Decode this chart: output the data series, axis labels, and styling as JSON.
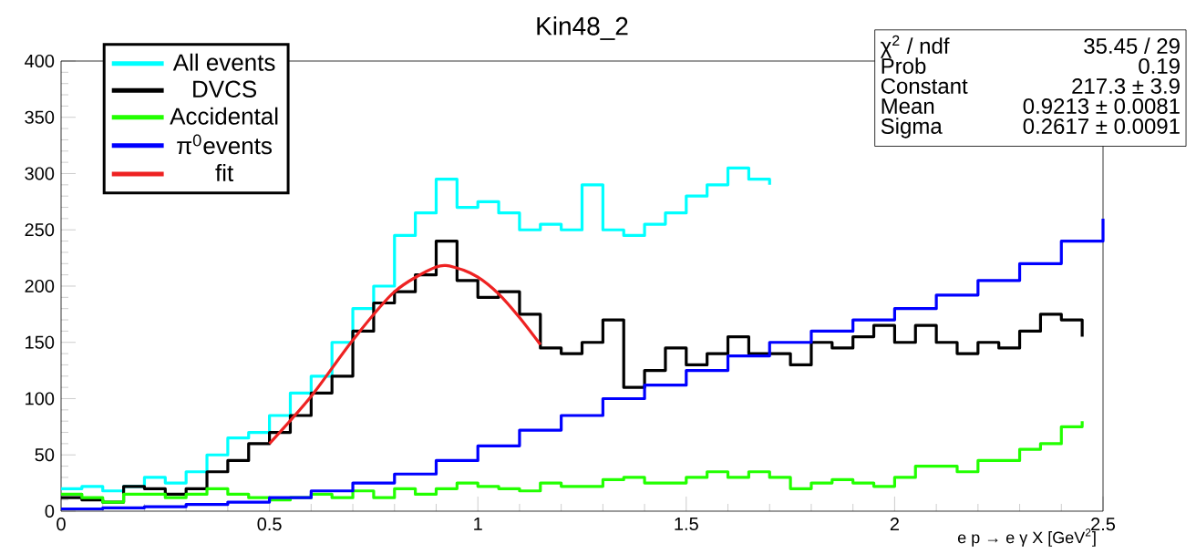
{
  "chart_data": {
    "type": "step",
    "title": "Kin48_2",
    "xlabel": "e p → e γ X     [GeV$^{2}$]",
    "xlim": [
      0,
      2.5
    ],
    "ylim": [
      0,
      400
    ],
    "xticks": [
      0,
      0.5,
      1,
      1.5,
      2,
      2.5
    ],
    "yticks": [
      0,
      50,
      100,
      150,
      200,
      250,
      300,
      350,
      400
    ],
    "legend": "top left",
    "series": [
      {
        "name": "All events",
        "color": "#00ffff",
        "x": [
          0,
          0.05,
          0.1,
          0.15,
          0.2,
          0.25,
          0.3,
          0.35,
          0.4,
          0.45,
          0.5,
          0.55,
          0.6,
          0.65,
          0.7,
          0.75,
          0.8,
          0.85,
          0.9,
          0.95,
          1.0,
          1.05,
          1.1,
          1.15,
          1.2,
          1.25,
          1.3,
          1.35,
          1.4,
          1.45,
          1.5,
          1.55,
          1.6,
          1.65,
          1.7
        ],
        "values": [
          20,
          22,
          18,
          22,
          30,
          25,
          35,
          50,
          65,
          70,
          85,
          105,
          120,
          150,
          180,
          200,
          245,
          265,
          295,
          270,
          275,
          265,
          250,
          255,
          250,
          290,
          250,
          245,
          255,
          265,
          280,
          290,
          305,
          295,
          290
        ]
      },
      {
        "name": "DVCS",
        "color": "#000000",
        "x": [
          0,
          0.05,
          0.1,
          0.15,
          0.2,
          0.25,
          0.3,
          0.35,
          0.4,
          0.45,
          0.5,
          0.55,
          0.6,
          0.65,
          0.7,
          0.75,
          0.8,
          0.85,
          0.9,
          0.95,
          1.0,
          1.05,
          1.1,
          1.15,
          1.2,
          1.25,
          1.3,
          1.35,
          1.4,
          1.45,
          1.5,
          1.55,
          1.6,
          1.65,
          1.7,
          1.75,
          1.8,
          1.85,
          1.9,
          1.95,
          2.0,
          2.05,
          2.1,
          2.15,
          2.2,
          2.25,
          2.3,
          2.35,
          2.4,
          2.45
        ],
        "values": [
          12,
          10,
          8,
          22,
          20,
          15,
          20,
          35,
          45,
          60,
          70,
          85,
          105,
          120,
          160,
          185,
          195,
          210,
          240,
          205,
          190,
          195,
          175,
          145,
          140,
          150,
          170,
          110,
          125,
          145,
          130,
          140,
          155,
          140,
          140,
          130,
          150,
          145,
          155,
          165,
          150,
          165,
          150,
          140,
          150,
          145,
          160,
          175,
          170,
          155
        ]
      },
      {
        "name": "Accidental",
        "color": "#22ff00",
        "x": [
          0,
          0.05,
          0.1,
          0.15,
          0.2,
          0.25,
          0.3,
          0.35,
          0.4,
          0.45,
          0.5,
          0.55,
          0.6,
          0.65,
          0.7,
          0.75,
          0.8,
          0.85,
          0.9,
          0.95,
          1.0,
          1.05,
          1.1,
          1.15,
          1.2,
          1.25,
          1.3,
          1.35,
          1.4,
          1.45,
          1.5,
          1.55,
          1.6,
          1.65,
          1.7,
          1.75,
          1.8,
          1.85,
          1.9,
          1.95,
          2.0,
          2.05,
          2.1,
          2.15,
          2.2,
          2.25,
          2.3,
          2.35,
          2.4,
          2.45
        ],
        "values": [
          15,
          12,
          8,
          15,
          15,
          12,
          15,
          20,
          15,
          12,
          10,
          12,
          15,
          12,
          18,
          12,
          20,
          15,
          20,
          25,
          22,
          20,
          18,
          25,
          22,
          22,
          28,
          30,
          25,
          25,
          30,
          35,
          30,
          35,
          30,
          20,
          25,
          28,
          25,
          22,
          30,
          40,
          40,
          35,
          45,
          45,
          55,
          60,
          75,
          80
        ]
      },
      {
        "name": "π$^{0}$events",
        "color": "#0000ff",
        "x": [
          0,
          0.1,
          0.2,
          0.3,
          0.4,
          0.5,
          0.6,
          0.7,
          0.8,
          0.9,
          1.0,
          1.1,
          1.2,
          1.3,
          1.4,
          1.5,
          1.6,
          1.7,
          1.8,
          1.9,
          2.0,
          2.1,
          2.2,
          2.3,
          2.4,
          2.5
        ],
        "values": [
          2,
          3,
          4,
          6,
          8,
          12,
          18,
          25,
          33,
          45,
          58,
          72,
          85,
          100,
          112,
          125,
          138,
          150,
          160,
          170,
          180,
          192,
          205,
          220,
          240,
          260
        ]
      },
      {
        "name": "fit",
        "type": "line",
        "color": "#ee2222",
        "x": [
          0.5,
          0.6,
          0.7,
          0.8,
          0.9,
          0.95,
          1.0,
          1.05,
          1.1,
          1.15
        ],
        "values": [
          60,
          102,
          152,
          195,
          217,
          216,
          208,
          193,
          172,
          148
        ]
      }
    ],
    "annotations": [
      "χ$^{2}$ / ndf",
      "35.45 / 29",
      "Prob",
      "0.19",
      "Constant",
      "217.3 ± 3.9",
      "Mean",
      "0.9213 ± 0.0081",
      "Sigma",
      "0.2617 ± 0.0091"
    ]
  }
}
